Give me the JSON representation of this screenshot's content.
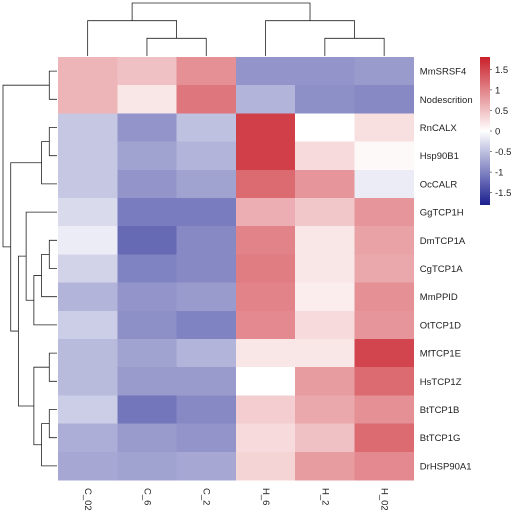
{
  "chart_data": {
    "type": "heatmap",
    "columns": [
      "C_02",
      "C_6",
      "C_2",
      "H_6",
      "H_2",
      "H_02"
    ],
    "rows": [
      "MmSRSF4",
      "Nodescrition",
      "RnCALX",
      "Hsp90B1",
      "OcCALR",
      "GgTCP1H",
      "DmTCP1A",
      "CgTCP1A",
      "MmPPID",
      "OtTCP1D",
      "MfTCP1E",
      "HsTCP1Z",
      "BtTCP1B",
      "BtTCP1G",
      "DrHSP90A1"
    ],
    "values": [
      [
        0.6,
        0.5,
        0.9,
        -0.85,
        -0.85,
        -0.8
      ],
      [
        0.6,
        0.2,
        1.1,
        -0.6,
        -0.9,
        -0.95
      ],
      [
        -0.45,
        -0.85,
        -0.5,
        1.55,
        0.0,
        0.25
      ],
      [
        -0.45,
        -0.75,
        -0.6,
        1.55,
        0.3,
        0.05
      ],
      [
        -0.45,
        -0.85,
        -0.75,
        1.2,
        0.85,
        -0.15
      ],
      [
        -0.3,
        -1.05,
        -1.05,
        0.65,
        0.45,
        0.85
      ],
      [
        -0.15,
        -1.2,
        -0.95,
        1.0,
        0.2,
        0.75
      ],
      [
        -0.35,
        -1.0,
        -0.95,
        1.05,
        0.2,
        0.7
      ],
      [
        -0.6,
        -0.85,
        -0.8,
        1.0,
        0.15,
        0.9
      ],
      [
        -0.4,
        -0.9,
        -1.0,
        0.95,
        0.3,
        0.85
      ],
      [
        -0.55,
        -0.75,
        -0.6,
        0.2,
        0.2,
        1.5
      ],
      [
        -0.55,
        -0.8,
        -0.8,
        0.0,
        0.8,
        1.2
      ],
      [
        -0.4,
        -1.1,
        -0.95,
        0.4,
        0.7,
        0.9
      ],
      [
        -0.65,
        -0.8,
        -0.85,
        0.3,
        0.5,
        1.2
      ],
      [
        -0.7,
        -0.75,
        -0.7,
        0.35,
        0.8,
        0.95
      ]
    ],
    "color_scale": {
      "min": -1.8,
      "max": 1.8,
      "low_color": "#1a1f8f",
      "mid_color": "#ffffff",
      "high_color": "#c9202a"
    },
    "legend": {
      "ticks": [
        1.5,
        1,
        0.5,
        0,
        -0.5,
        -1,
        -1.5
      ],
      "tick_labels": [
        "1.5",
        "1",
        "0.5",
        "0",
        "-0.5",
        "-1",
        "-1.5"
      ],
      "placement": "right"
    },
    "row_dendrogram": [
      [
        0,
        1
      ],
      [
        2,
        3
      ],
      [
        16,
        4
      ],
      [
        6,
        7
      ],
      [
        18,
        8
      ],
      [
        19,
        9
      ],
      [
        5,
        20
      ],
      [
        10,
        11
      ],
      [
        12,
        13
      ],
      [
        23,
        14
      ],
      [
        22,
        24
      ],
      [
        21,
        25
      ],
      [
        17,
        26
      ],
      [
        15,
        27
      ]
    ],
    "col_dendrogram": [
      [
        1,
        2
      ],
      [
        0,
        6
      ],
      [
        4,
        5
      ],
      [
        3,
        8
      ],
      [
        7,
        9
      ]
    ]
  }
}
